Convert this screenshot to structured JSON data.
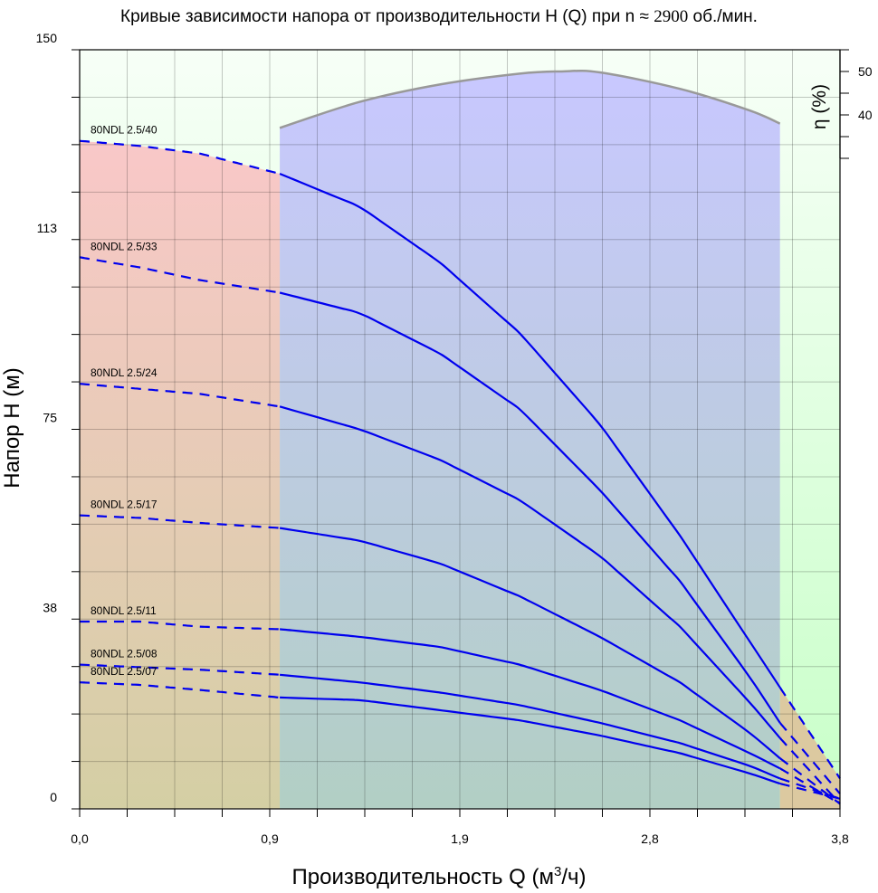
{
  "title": {
    "prefix": "Кривые зависимости напора от производительности H (Q) при n ≈ ",
    "speed": "2900",
    "suffix": " об./мин."
  },
  "y_axis_title": "Напор H (м)",
  "x_axis_title": {
    "base": "Производительность Q (м",
    "sup": "3",
    "end": "/ч)"
  },
  "efficiency_axis_label": "η (%)",
  "colors": {
    "curve": "#0000ee",
    "efficiency_line": "#999999",
    "zone_left": "#f9c8c8",
    "zone_mid": "#c8c8ff",
    "zone_right": "#c8ffc8",
    "zone_bottom": "#b2cfc4"
  },
  "chart_data": {
    "type": "line",
    "x": [
      0,
      0.3,
      0.6,
      1.0,
      1.4,
      1.8,
      2.2,
      2.6,
      3.0,
      3.35,
      3.5,
      3.8
    ],
    "xlim": [
      0,
      3.8
    ],
    "ylim": [
      0,
      150
    ],
    "x_tick_labels": [
      "0,0",
      "0,9",
      "1,9",
      "2,8",
      "3,8"
    ],
    "x_tick_values": [
      0,
      0.95,
      1.9,
      2.85,
      3.8
    ],
    "y_tick_labels": [
      "0",
      "38",
      "75",
      "113",
      "150"
    ],
    "y_tick_values": [
      0,
      37.5,
      75,
      112.5,
      150
    ],
    "recommended_range": [
      1.0,
      3.5
    ],
    "grid": true,
    "series": [
      {
        "name": "80NDL 2.5/40",
        "values": [
          132,
          131,
          129.5,
          125.5,
          119,
          108,
          94,
          76,
          54,
          33,
          24,
          6
        ]
      },
      {
        "name": "80NDL 2.5/33",
        "values": [
          109,
          107,
          104.5,
          102,
          98,
          90,
          79,
          63,
          45,
          26,
          17,
          3
        ]
      },
      {
        "name": "80NDL 2.5/24",
        "values": [
          84,
          83,
          82,
          79.5,
          75,
          69,
          61,
          50,
          36,
          21,
          14,
          1
        ]
      },
      {
        "name": "80NDL 2.5/17",
        "values": [
          58,
          57.5,
          56.5,
          55.5,
          53,
          48.5,
          42,
          34,
          25,
          15,
          10,
          1
        ]
      },
      {
        "name": "80NDL 2.5/11",
        "values": [
          37,
          37,
          36,
          35.5,
          34,
          32,
          28.5,
          23.5,
          17.5,
          11,
          8,
          1
        ]
      },
      {
        "name": "80NDL 2.5/08",
        "values": [
          28.5,
          28,
          27.5,
          26.5,
          25,
          23,
          20.5,
          17,
          13,
          8.5,
          6,
          2
        ]
      },
      {
        "name": "80NDL 2.5/07",
        "values": [
          25,
          24.5,
          23.5,
          22,
          21.5,
          19.5,
          17.5,
          14.5,
          11,
          7,
          5,
          2
        ]
      }
    ],
    "efficiency": {
      "name": "η (%)",
      "x": [
        1.0,
        1.4,
        1.8,
        2.2,
        2.4,
        2.6,
        3.0,
        3.35,
        3.5
      ],
      "values": [
        37,
        43,
        47,
        49.5,
        50,
        49.8,
        46,
        41,
        38
      ],
      "axis_tick_labels": [
        "40",
        "50"
      ],
      "axis_tick_values": [
        40,
        50
      ],
      "axis_range": [
        30,
        55
      ]
    }
  }
}
